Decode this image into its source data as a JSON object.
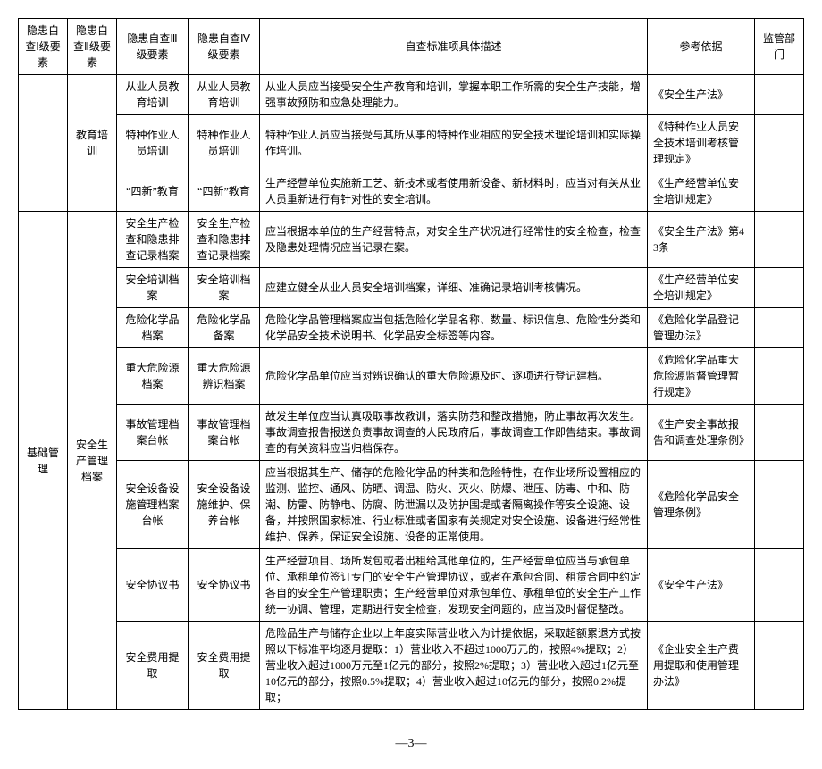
{
  "headers": {
    "c1": "隐患自查Ⅰ级要素",
    "c2": "隐患自查Ⅱ级要素",
    "c3": "隐患自查Ⅲ级要素",
    "c4": "隐患自查Ⅳ级要素",
    "c5": "自查标准项具体描述",
    "c6": "参考依据",
    "c7": "监管部门"
  },
  "groups": {
    "edu": "教育培训",
    "base": "基础管理",
    "archive": "安全生产管理档案"
  },
  "rows": [
    {
      "c3": "从业人员教育培训",
      "c4": "从业人员教育培训",
      "c5": "从业人员应当接受安全生产教育和培训，掌握本职工作所需的安全生产技能，增强事故预防和应急处理能力。",
      "c6": "《安全生产法》"
    },
    {
      "c3": "特种作业人员培训",
      "c4": "特种作业人员培训",
      "c5": "特种作业人员应当接受与其所从事的特种作业相应的安全技术理论培训和实际操作培训。",
      "c6": "《特种作业人员安全技术培训考核管理规定》"
    },
    {
      "c3": "“四新”教育",
      "c4": "“四新”教育",
      "c5": "生产经营单位实施新工艺、新技术或者使用新设备、新材料时，应当对有关从业人员重新进行有针对性的安全培训。",
      "c6": "《生产经营单位安全培训规定》"
    },
    {
      "c3": "安全生产检查和隐患排查记录档案",
      "c4": "安全生产检查和隐患排查记录档案",
      "c5": "应当根据本单位的生产经营特点，对安全生产状况进行经常性的安全检查，检查及隐患处理情况应当记录在案。",
      "c6": "《安全生产法》第43条"
    },
    {
      "c3": "安全培训档案",
      "c4": "安全培训档案",
      "c5": "应建立健全从业人员安全培训档案，详细、准确记录培训考核情况。",
      "c6": "《生产经营单位安全培训规定》"
    },
    {
      "c3": "危险化学品档案",
      "c4": "危险化学品备案",
      "c5": "危险化学品管理档案应当包括危险化学品名称、数量、标识信息、危险性分类和化学品安全技术说明书、化学品安全标签等内容。",
      "c6": "《危险化学品登记管理办法》"
    },
    {
      "c3": "重大危险源档案",
      "c4": "重大危险源辨识档案",
      "c5": "危险化学品单位应当对辨识确认的重大危险源及时、逐项进行登记建档。",
      "c6": "《危险化学品重大危险源监督管理暂行规定》"
    },
    {
      "c3": "事故管理档案台帐",
      "c4": "事故管理档案台帐",
      "c5": "故发生单位应当认真吸取事故教训，落实防范和整改措施，防止事故再次发生。事故调查报告报送负责事故调查的人民政府后，事故调查工作即告结束。事故调查的有关资料应当归档保存。",
      "c6": "《生产安全事故报告和调查处理条例》"
    },
    {
      "c3": "安全设备设施管理档案台帐",
      "c4": "安全设备设施维护、保养台帐",
      "c5": "应当根据其生产、储存的危险化学品的种类和危险特性，在作业场所设置相应的监测、监控、通风、防晒、调温、防火、灭火、防爆、泄压、防毒、中和、防潮、防雷、防静电、防腐、防泄漏以及防护围堤或者隔离操作等安全设施、设备，并按照国家标准、行业标准或者国家有关规定对安全设施、设备进行经常性维护、保养，保证安全设施、设备的正常使用。",
      "c6": "《危险化学品安全管理条例》"
    },
    {
      "c3": "安全协议书",
      "c4": "安全协议书",
      "c5": "生产经营项目、场所发包或者出租给其他单位的，生产经营单位应当与承包单位、承租单位签订专门的安全生产管理协议，或者在承包合同、租赁合同中约定各自的安全生产管理职责；生产经营单位对承包单位、承租单位的安全生产工作统一协调、管理，定期进行安全检查，发现安全问题的，应当及时督促整改。",
      "c6": "《安全生产法》"
    },
    {
      "c3": "安全费用提取",
      "c4": "安全费用提取",
      "c5": "危险品生产与储存企业以上年度实际营业收入为计提依据，采取超额累退方式按照以下标准平均逐月提取：1）营业收入不超过1000万元的，按照4%提取；2）营业收入超过1000万元至1亿元的部分，按照2%提取；3）营业收入超过1亿元至10亿元的部分，按照0.5%提取；4）营业收入超过10亿元的部分，按照0.2%提取；",
      "c6": "《企业安全生产费用提取和使用管理办法》"
    }
  ],
  "page_number": "—3—"
}
